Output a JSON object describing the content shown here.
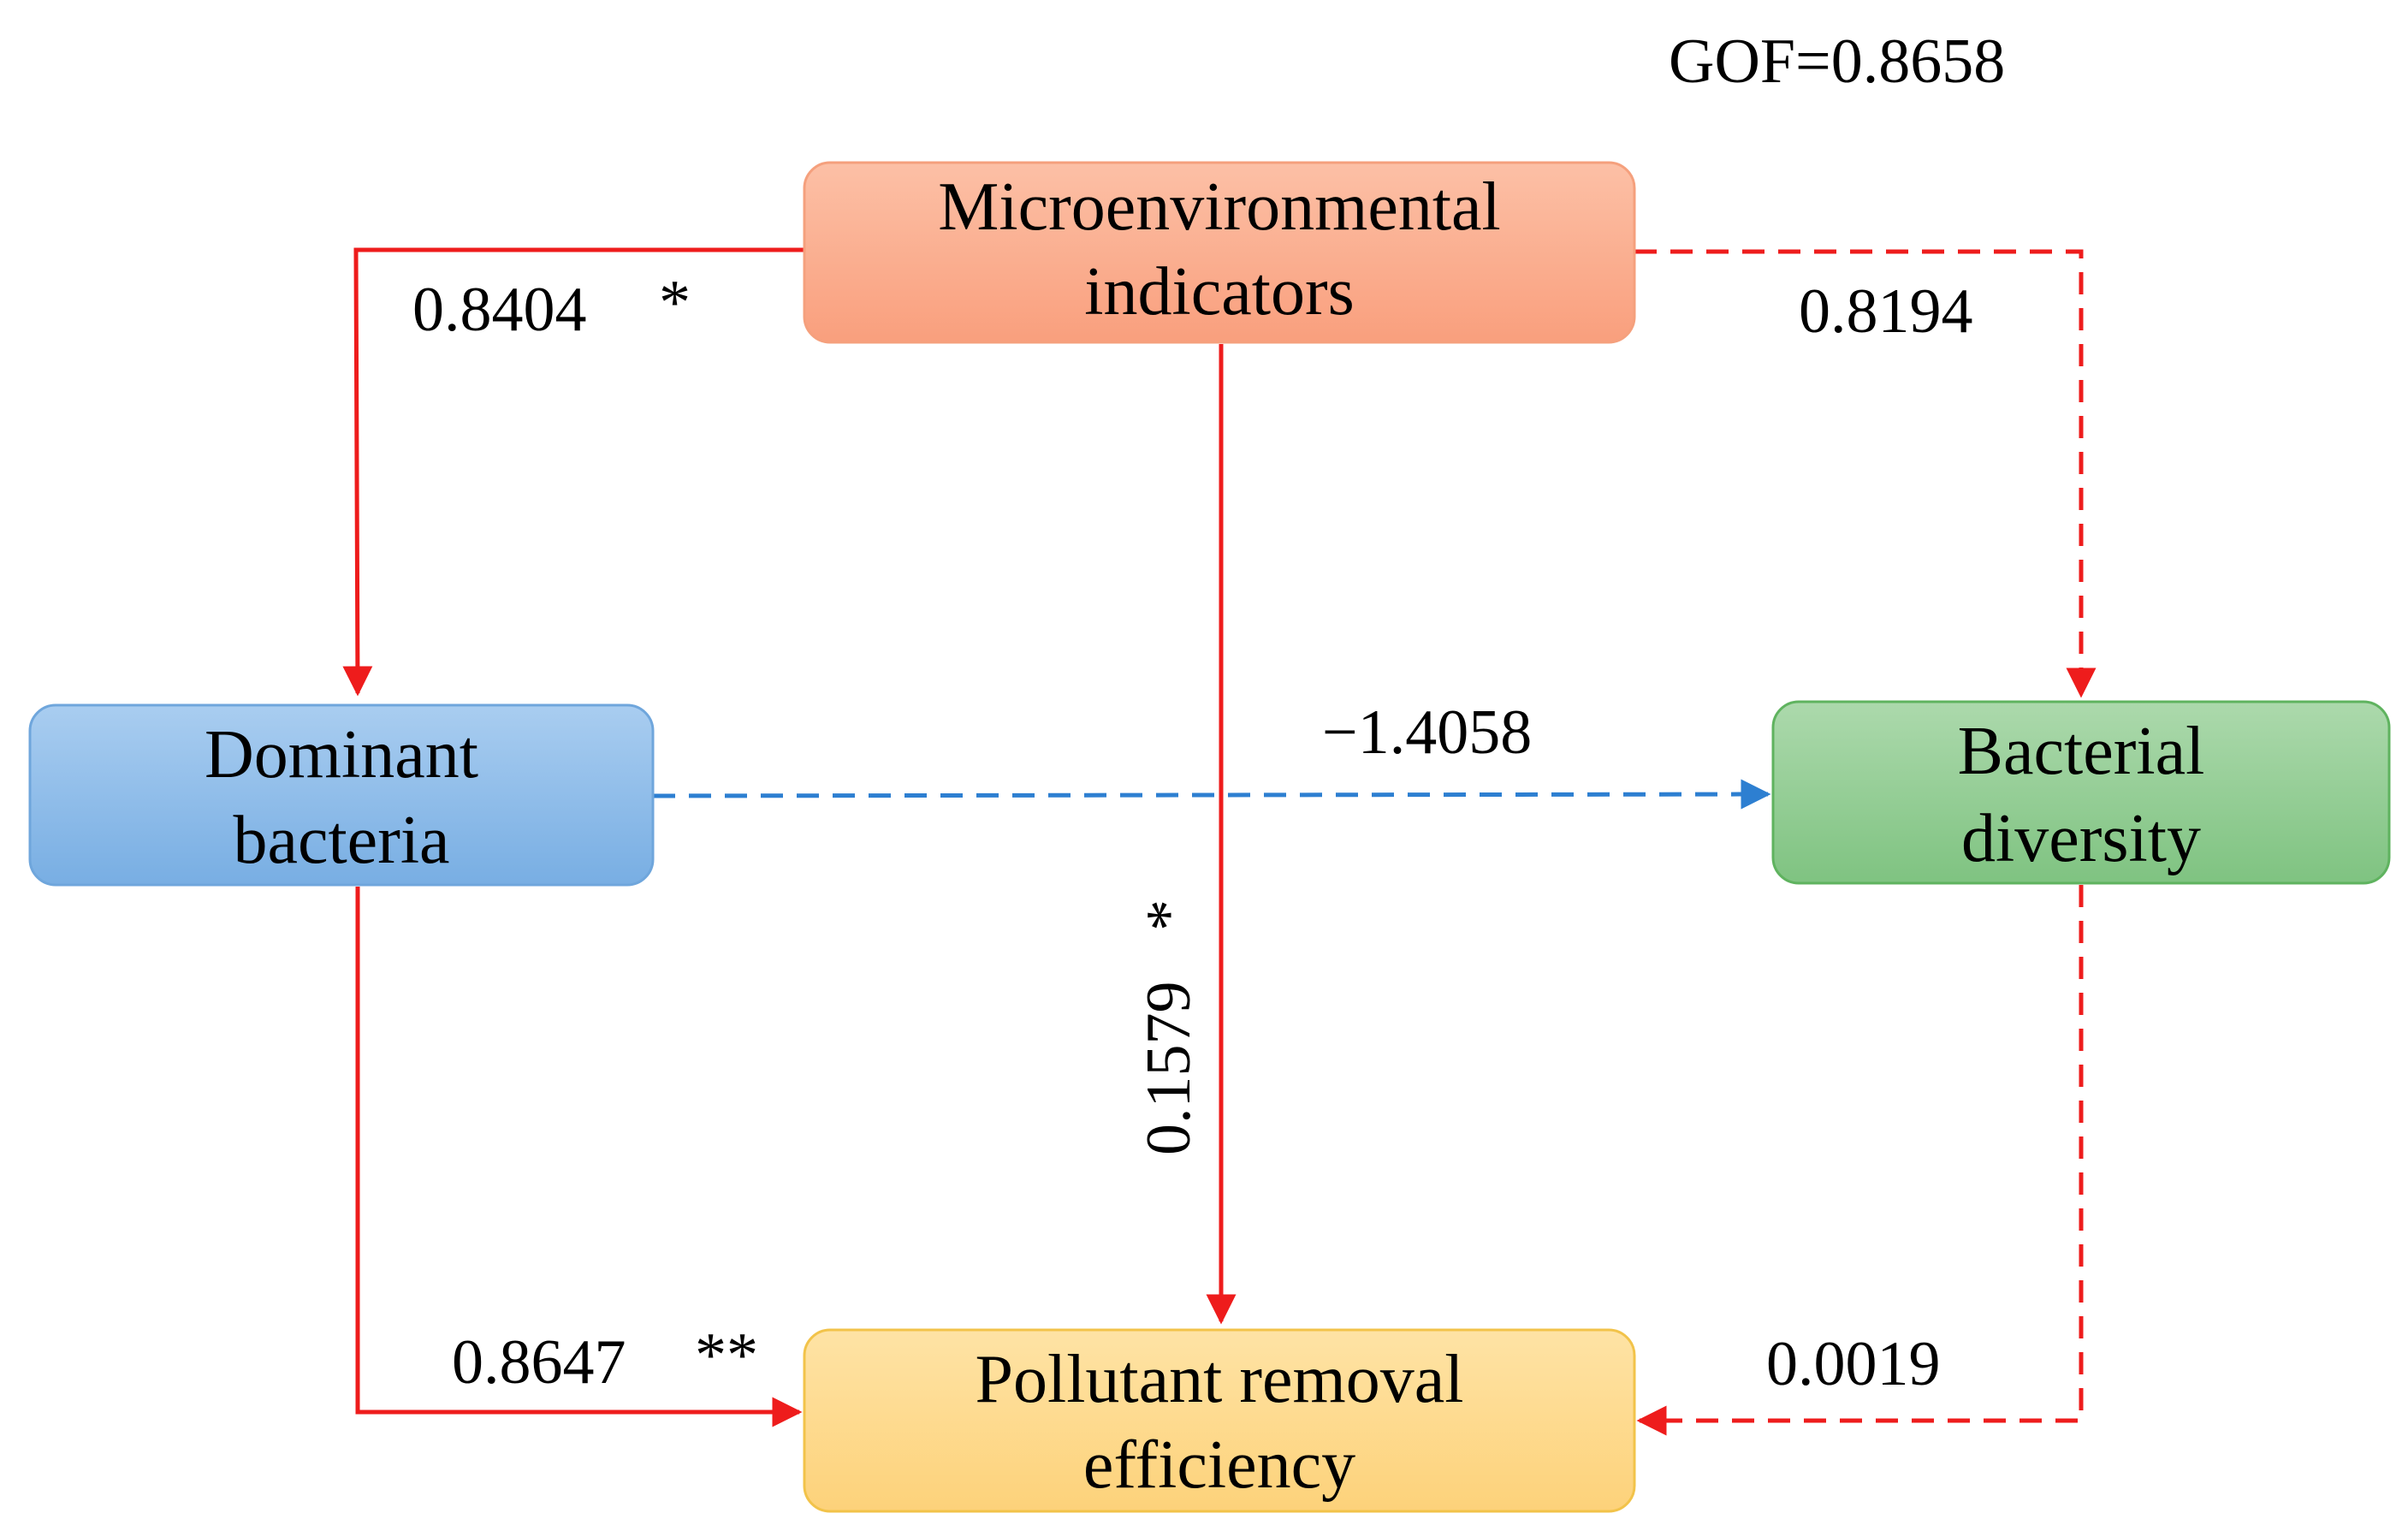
{
  "gof": "GOF=0.8658",
  "colors": {
    "significant_positive": "#ee1c1c",
    "nonsignificant_negative": "#2d7fd1",
    "microenvironmental": "#fcae8c",
    "dominant": "#8fbce8",
    "bacterial": "#98d199",
    "pollutant": "#fdd98c"
  },
  "nodes": {
    "microenvironmental": {
      "line1": "Microenvironmental",
      "line2": "indicators"
    },
    "dominant": {
      "line1": "Dominant",
      "line2": "bacteria"
    },
    "bacterial": {
      "line1": "Bacterial",
      "line2": "diversity"
    },
    "pollutant": {
      "line1": "Pollutant removal",
      "line2": "efficiency"
    }
  },
  "edges": {
    "micro_to_dominant": {
      "value": "0.8404",
      "sig": "*"
    },
    "micro_to_bacterial": {
      "value": "0.8194",
      "sig": ""
    },
    "micro_to_pollutant": {
      "value": "0.1579",
      "sig": "*"
    },
    "dominant_to_bacterial": {
      "value": "−1.4058",
      "sig": ""
    },
    "dominant_to_pollutant": {
      "value": "0.8647",
      "sig": "**"
    },
    "bacterial_to_pollutant": {
      "value": "0.0019",
      "sig": ""
    }
  }
}
